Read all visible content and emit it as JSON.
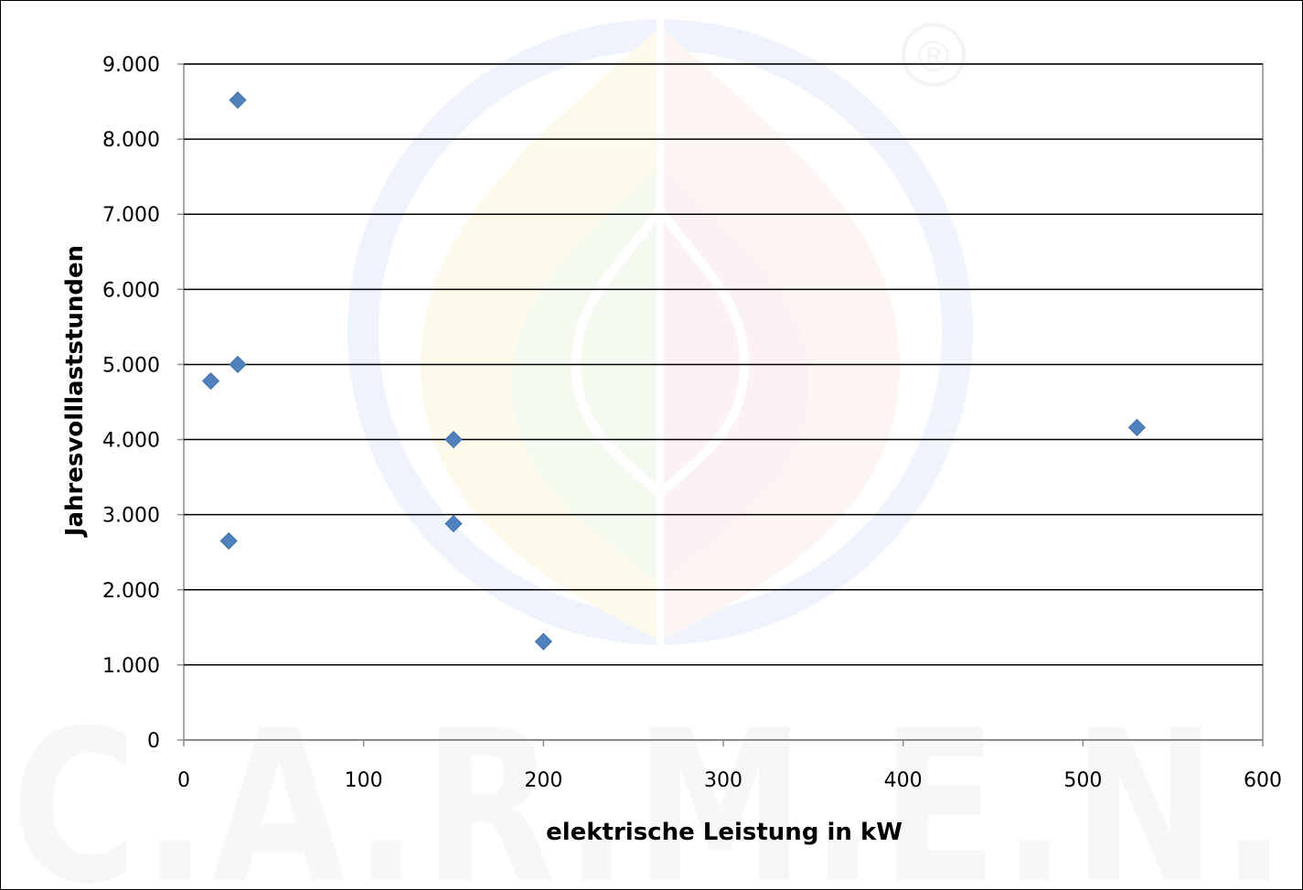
{
  "watermark": {
    "text": "C.A.R.M.E.N.",
    "registered_mark": "®"
  },
  "chart_data": {
    "type": "scatter",
    "title": "",
    "xlabel": "elektrische Leistung in kW",
    "ylabel": "Jahresvolllaststunden",
    "xlim": [
      0,
      600
    ],
    "ylim": [
      0,
      9000
    ],
    "x_ticks": [
      "0",
      "100",
      "200",
      "300",
      "400",
      "500",
      "600"
    ],
    "y_ticks": [
      "0",
      "1.000",
      "2.000",
      "3.000",
      "4.000",
      "5.000",
      "6.000",
      "7.000",
      "8.000",
      "9.000"
    ],
    "grid": "horizontal",
    "legend": "none",
    "marker": "diamond",
    "marker_color": "#4f81bd",
    "points": [
      {
        "x": 30,
        "y": 8520
      },
      {
        "x": 30,
        "y": 5000
      },
      {
        "x": 15,
        "y": 4780
      },
      {
        "x": 25,
        "y": 2650
      },
      {
        "x": 150,
        "y": 4000
      },
      {
        "x": 150,
        "y": 2880
      },
      {
        "x": 200,
        "y": 1310
      },
      {
        "x": 530,
        "y": 4160
      }
    ]
  }
}
